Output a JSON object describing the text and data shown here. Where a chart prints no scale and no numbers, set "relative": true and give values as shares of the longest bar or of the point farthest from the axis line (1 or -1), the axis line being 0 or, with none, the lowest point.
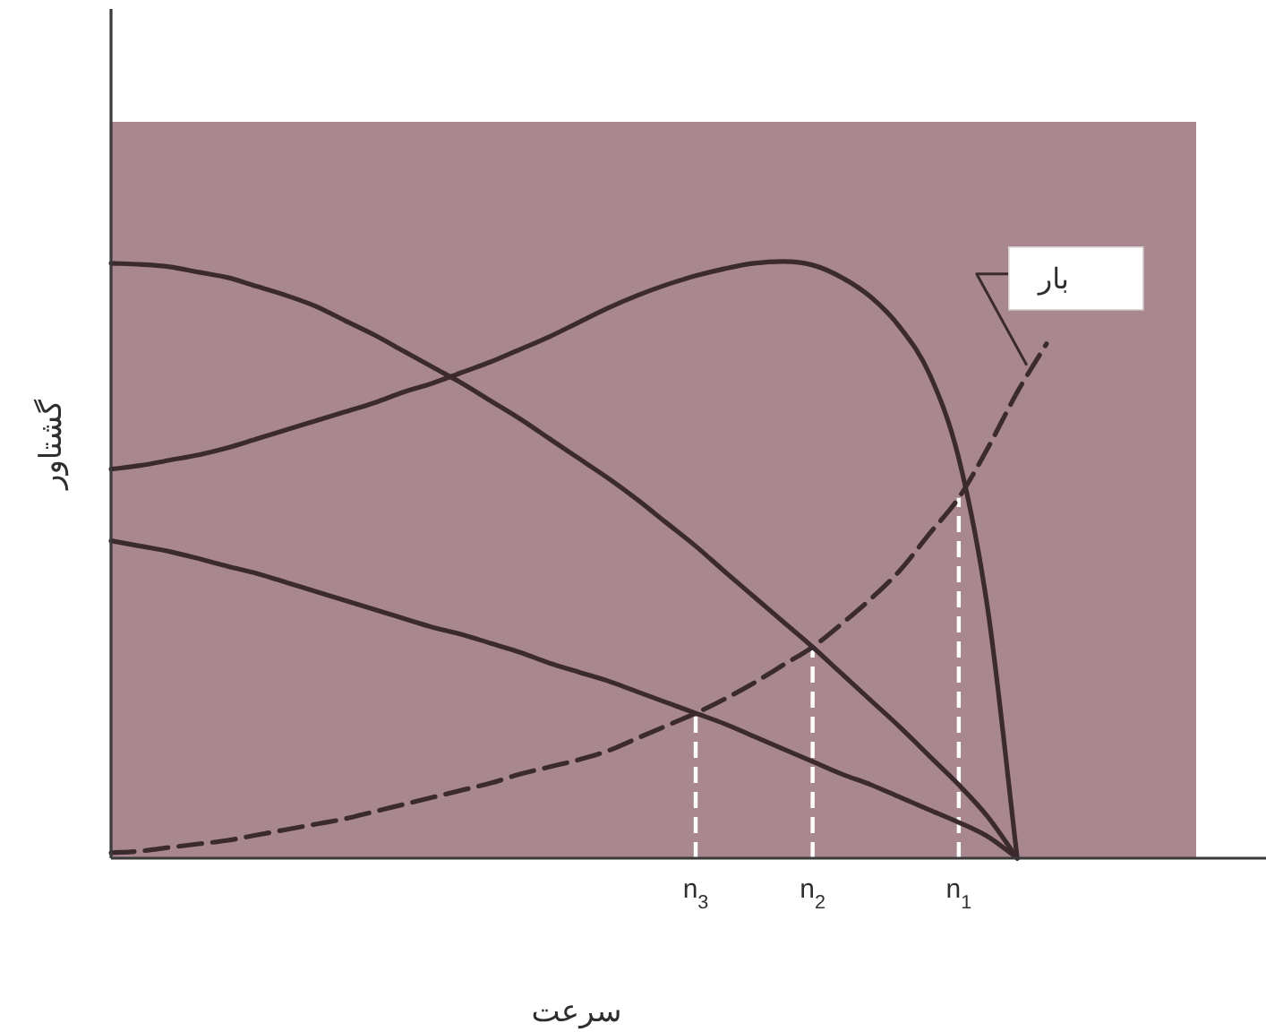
{
  "chart_data": {
    "type": "line",
    "relative": true,
    "xlabel": "سرعت",
    "ylabel": "گشتاور",
    "categories": [
      null,
      null,
      null,
      null,
      null,
      null,
      null,
      null,
      null,
      null,
      null,
      null,
      null,
      null,
      null,
      null,
      null,
      null,
      null,
      null,
      "n$_{3}$",
      null,
      null,
      null,
      "n$_{2}$",
      null,
      null,
      null,
      null,
      "n$_{1}$",
      null,
      null,
      null
    ],
    "series": [
      {
        "color": "#3b2a2e",
        "values": [
          0.652,
          0.658,
          0.667,
          0.676,
          0.688,
          0.703,
          0.718,
          0.733,
          0.748,
          0.763,
          0.781,
          0.796,
          0.814,
          0.832,
          0.853,
          0.874,
          0.898,
          0.922,
          0.943,
          0.961,
          0.976,
          0.988,
          0.997,
          1,
          0.994,
          0.973,
          0.94,
          0.889,
          0.811,
          0.67,
          0.414,
          0,
          null
        ]
      },
      {
        "color": "#3b2a2e",
        "values": [
          0.997,
          0.995,
          0.991,
          0.982,
          0.973,
          0.958,
          0.943,
          0.925,
          0.901,
          0.877,
          0.85,
          0.823,
          0.796,
          0.766,
          0.736,
          0.703,
          0.67,
          0.637,
          0.601,
          0.562,
          0.523,
          0.48,
          0.438,
          0.396,
          0.354,
          0.309,
          0.264,
          0.219,
          0.171,
          0.123,
          0.069,
          0,
          null
        ]
      },
      {
        "color": "#3b2a2e",
        "values": [
          0.532,
          0.523,
          0.514,
          0.502,
          0.489,
          0.477,
          0.462,
          0.447,
          0.432,
          0.417,
          0.402,
          0.387,
          0.375,
          0.36,
          0.345,
          0.327,
          0.312,
          0.297,
          0.279,
          0.261,
          0.243,
          0.225,
          0.204,
          0.183,
          0.162,
          0.141,
          0.123,
          0.102,
          0.081,
          0.06,
          0.036,
          0,
          null
        ]
      },
      {
        "name": "بار",
        "color": "#3b2a2e",
        "line_style": "dashed",
        "values": [
          0.009,
          0.012,
          0.018,
          0.024,
          0.03,
          0.039,
          0.048,
          0.057,
          0.066,
          0.078,
          0.09,
          0.102,
          0.114,
          0.126,
          0.141,
          0.153,
          0.165,
          0.18,
          0.201,
          0.222,
          0.243,
          0.267,
          0.294,
          0.324,
          0.354,
          0.393,
          0.435,
          0.483,
          0.544,
          0.604,
          0.688,
          0.781,
          0.862
        ]
      }
    ],
    "ref_lines": [
      {
        "axis": "x",
        "value": "n$_{3}$",
        "color": "#ffffff",
        "line_style": "dashed"
      },
      {
        "axis": "x",
        "value": "n$_{2}$",
        "color": "#ffffff",
        "line_style": "dashed"
      },
      {
        "axis": "x",
        "value": "n$_{1}$",
        "color": "#ffffff",
        "line_style": "dashed"
      }
    ]
  }
}
